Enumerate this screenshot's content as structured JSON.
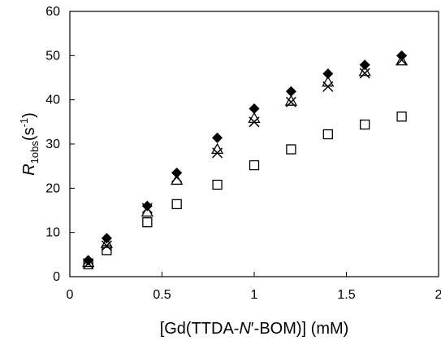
{
  "chart_data": {
    "type": "scatter",
    "title": "",
    "xlabel": "[Gd(TTDA-N′-BOM)] (mM)",
    "xlabel_parts": {
      "pre": "[Gd(TTDA-",
      "italic": "N",
      "post": "′-BOM)] (mM)"
    },
    "ylabel": "R1obs(s-1)",
    "ylabel_parts": {
      "main": "R",
      "sub": "1obs",
      "pre_sup": "(s",
      "sup": "-1",
      "post": ")"
    },
    "xlim": [
      0,
      2
    ],
    "ylim": [
      0,
      60
    ],
    "xticks": [
      0,
      0.5,
      1,
      1.5,
      2
    ],
    "xtick_labels": [
      "0",
      "0.5",
      "1",
      "1.5",
      "2"
    ],
    "yticks": [
      0,
      10,
      20,
      30,
      40,
      50,
      60
    ],
    "ytick_labels": [
      "0",
      "10",
      "20",
      "30",
      "40",
      "50",
      "60"
    ],
    "grid": false,
    "legend": "none",
    "series": [
      {
        "marker": "filled-diamond",
        "color": "#000000",
        "x": [
          0.1,
          0.2,
          0.42,
          0.58,
          0.8,
          1.0,
          1.2,
          1.4,
          1.6,
          1.8
        ],
        "y": [
          3.7,
          8.7,
          16.0,
          23.5,
          31.4,
          38.0,
          41.9,
          45.9,
          47.9,
          50.0
        ]
      },
      {
        "marker": "x-cross",
        "color": "#000000",
        "x": [
          0.1,
          0.2,
          0.42,
          0.58,
          0.8,
          1.0,
          1.2,
          1.4,
          1.6,
          1.8
        ],
        "y": [
          3.0,
          7.0,
          15.5,
          22.5,
          28.0,
          35.0,
          39.5,
          43.0,
          46.0,
          49.0
        ]
      },
      {
        "marker": "open-triangle",
        "color": "#000000",
        "x": [
          0.1,
          0.2,
          0.42,
          0.58,
          0.8,
          1.0,
          1.2,
          1.4,
          1.6,
          1.8
        ],
        "y": [
          3.2,
          7.5,
          14.6,
          21.8,
          28.8,
          35.8,
          39.7,
          44.0,
          46.4,
          48.8
        ]
      },
      {
        "marker": "open-square",
        "color": "#000000",
        "x": [
          0.1,
          0.2,
          0.42,
          0.58,
          0.8,
          1.0,
          1.2,
          1.4,
          1.6,
          1.8
        ],
        "y": [
          2.8,
          6.0,
          12.3,
          16.4,
          20.8,
          25.2,
          28.8,
          32.2,
          34.4,
          36.2
        ]
      }
    ]
  }
}
